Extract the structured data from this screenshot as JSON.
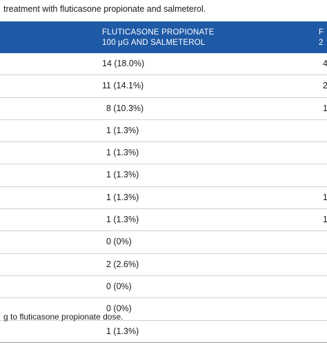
{
  "caption": "treatment with fluticasone propionate and salmeterol.",
  "header": {
    "column_line1": "FLUTICASONE PROPIONATE",
    "column_line2": "100 μG AND SALMETEROL",
    "next_line1": "F",
    "next_line2": "2"
  },
  "rows": [
    {
      "value": "14 (18.0%)",
      "next": "4"
    },
    {
      "value": "11 (14.1%)",
      "next": "2"
    },
    {
      "value": "8 (10.3%)",
      "next": "1"
    },
    {
      "value": "1 (1.3%)",
      "next": ""
    },
    {
      "value": "1 (1.3%)",
      "next": ""
    },
    {
      "value": "1 (1.3%)",
      "next": ""
    },
    {
      "value": "1 (1.3%)",
      "next": "1"
    },
    {
      "value": "1 (1.3%)",
      "next": "1"
    },
    {
      "value": "0 (0%)",
      "next": ""
    },
    {
      "value": "2 (2.6%)",
      "next": ""
    },
    {
      "value": "0 (0%)",
      "next": ""
    },
    {
      "value": "0 (0%)",
      "next": ""
    },
    {
      "value": "1 (1.3%)",
      "next": ""
    }
  ],
  "footnote": "g to fluticasone propionate dose."
}
